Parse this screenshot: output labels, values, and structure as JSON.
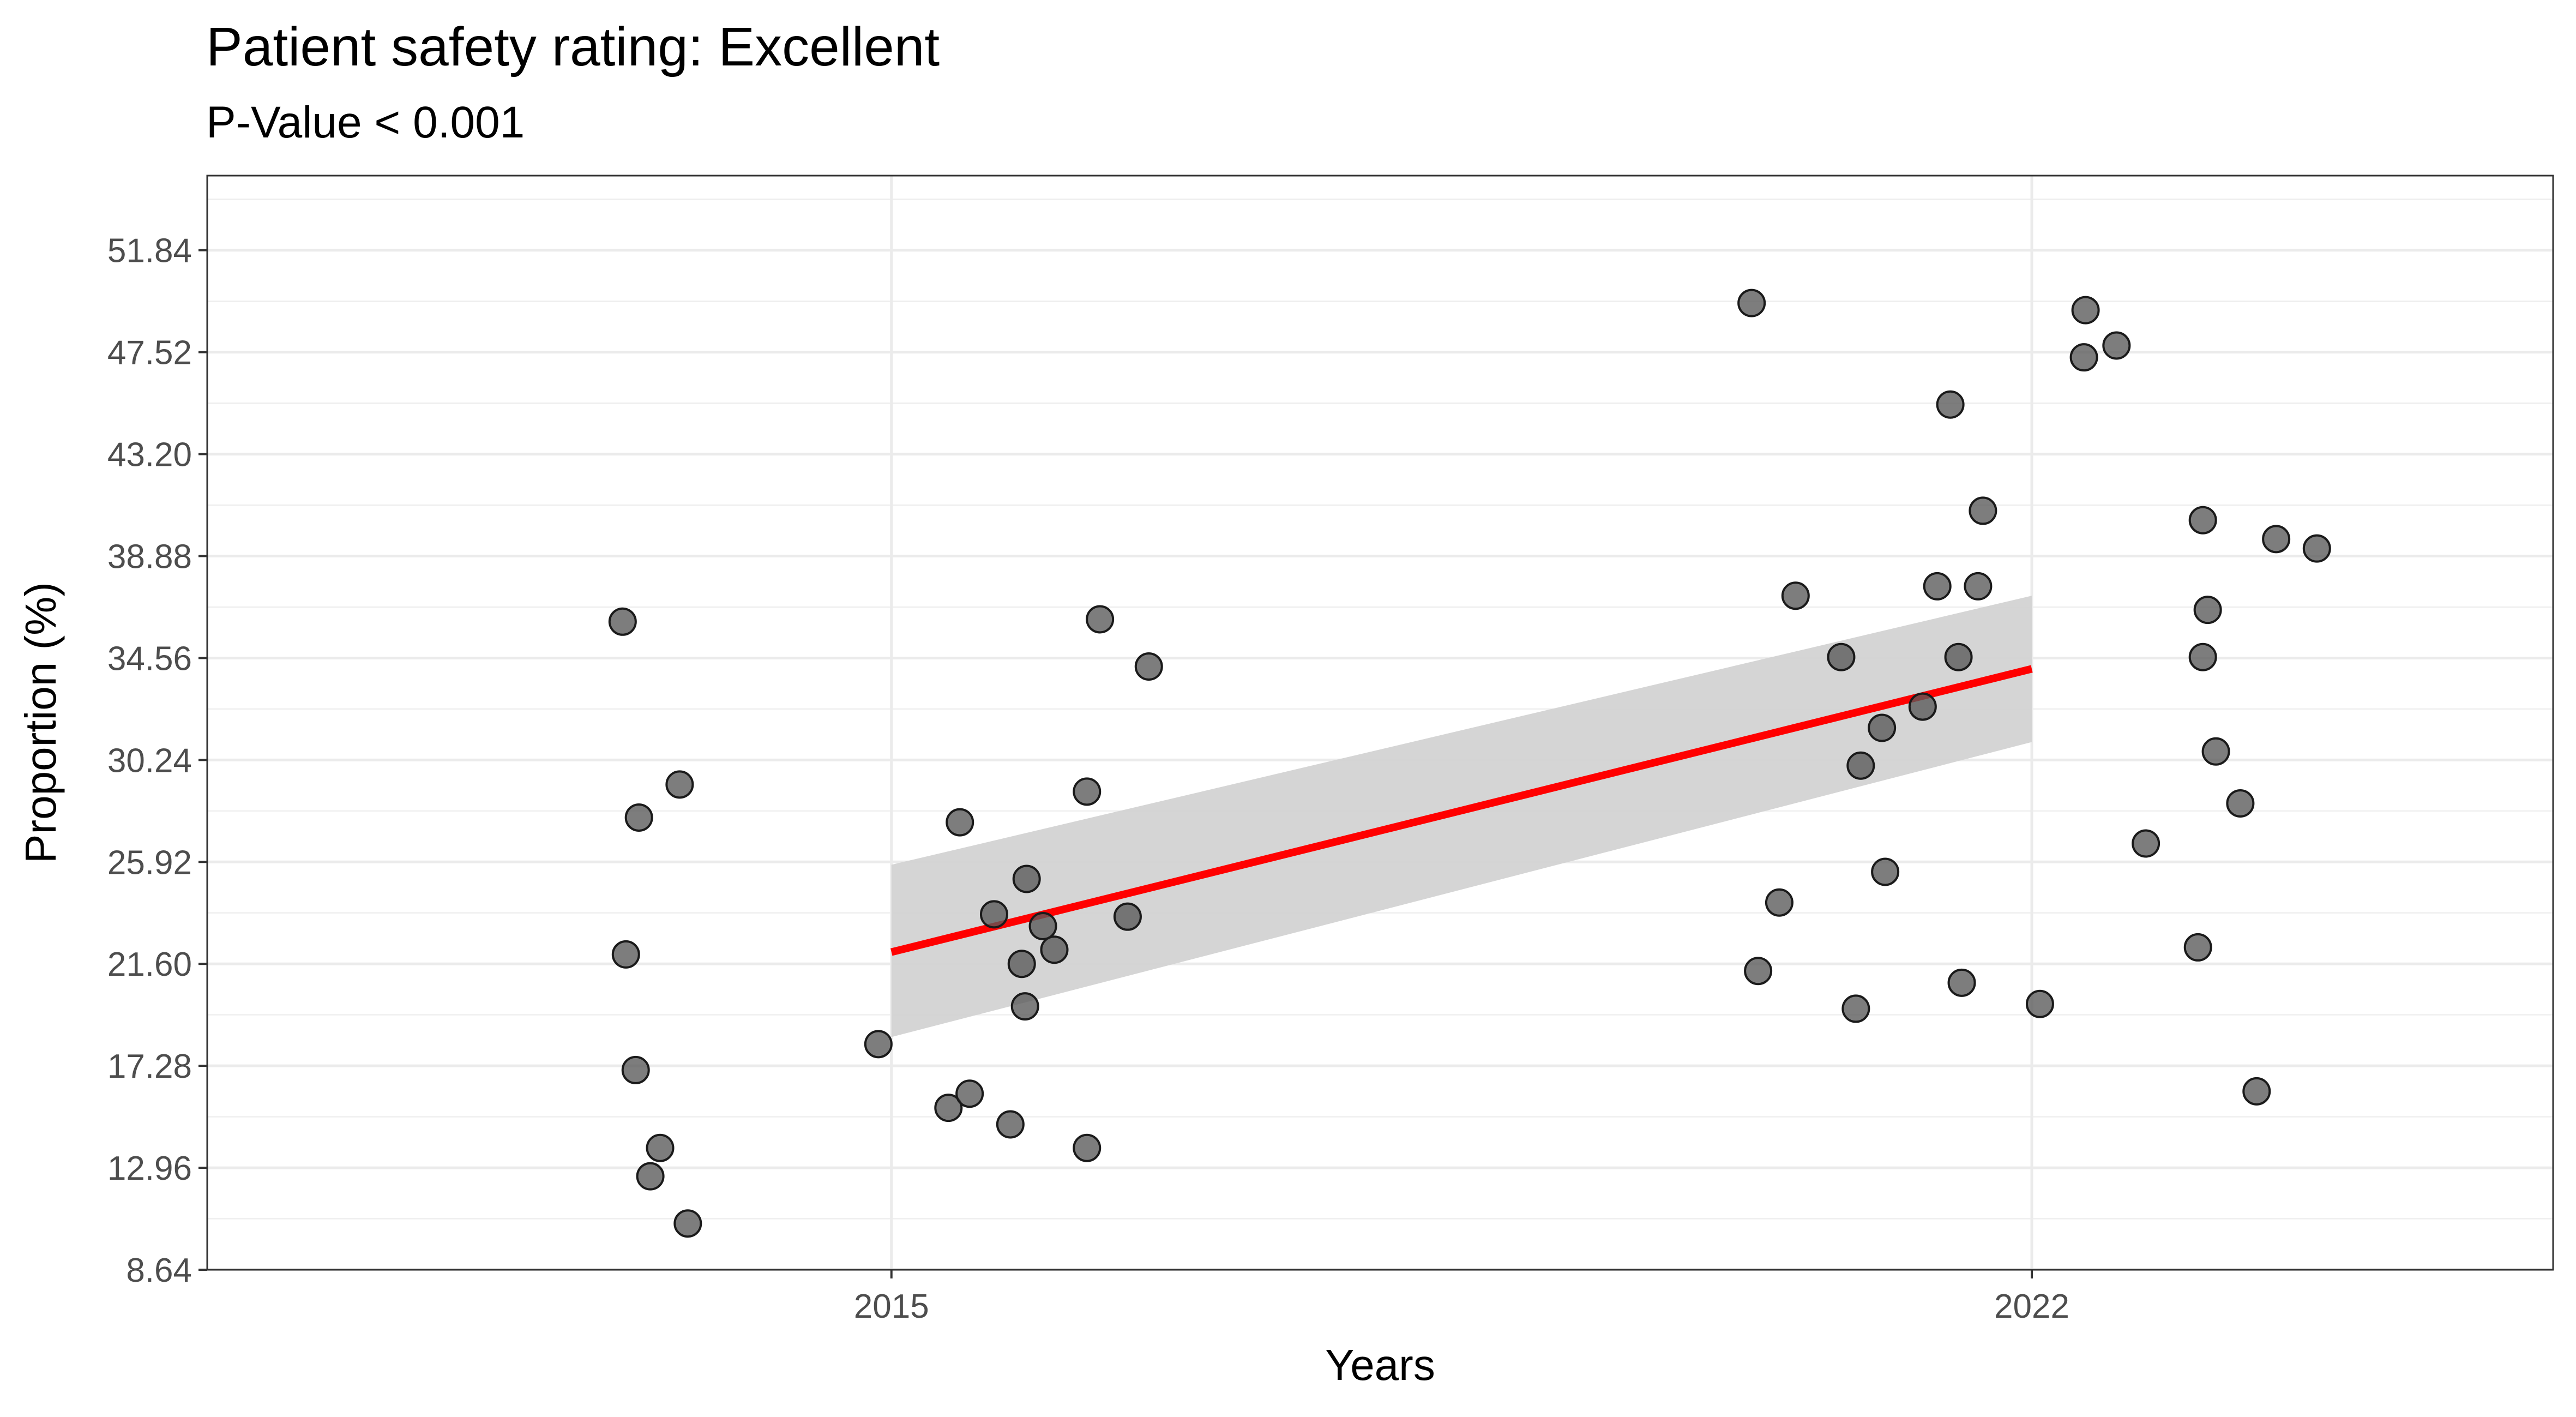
{
  "chart_data": {
    "type": "scatter",
    "title": "Patient safety rating: Excellent",
    "subtitle": "P-Value < 0.001",
    "xlabel": "Years",
    "ylabel": "Proportion (%)",
    "x_ticks": [
      2015,
      2022
    ],
    "y_ticks": [
      "8.64",
      "12.96",
      "17.28",
      "21.60",
      "25.92",
      "30.24",
      "34.56",
      "38.88",
      "43.20",
      "47.52",
      "51.84"
    ],
    "xlim": [
      2010.8,
      2025.2
    ],
    "ylim": [
      8.64,
      55.0
    ],
    "grid": true,
    "colors": {
      "points": "#595959",
      "fit_line": "#ff0000",
      "confidence_band": "#d3d3d3"
    },
    "points": [
      {
        "x": 2013.35,
        "y": 36.1
      },
      {
        "x": 2013.45,
        "y": 27.8
      },
      {
        "x": 2013.37,
        "y": 22.0
      },
      {
        "x": 2013.7,
        "y": 29.2
      },
      {
        "x": 2013.43,
        "y": 17.1
      },
      {
        "x": 2013.58,
        "y": 13.8
      },
      {
        "x": 2013.52,
        "y": 12.6
      },
      {
        "x": 2013.75,
        "y": 10.6
      },
      {
        "x": 2014.92,
        "y": 18.2
      },
      {
        "x": 2015.35,
        "y": 15.5
      },
      {
        "x": 2015.48,
        "y": 16.1
      },
      {
        "x": 2015.42,
        "y": 27.6
      },
      {
        "x": 2015.63,
        "y": 23.7
      },
      {
        "x": 2015.83,
        "y": 25.2
      },
      {
        "x": 2015.93,
        "y": 23.2
      },
      {
        "x": 2016.0,
        "y": 22.2
      },
      {
        "x": 2015.8,
        "y": 21.6
      },
      {
        "x": 2015.82,
        "y": 19.8
      },
      {
        "x": 2015.73,
        "y": 14.8
      },
      {
        "x": 2016.2,
        "y": 13.8
      },
      {
        "x": 2016.28,
        "y": 36.2
      },
      {
        "x": 2016.2,
        "y": 28.9
      },
      {
        "x": 2016.45,
        "y": 23.6
      },
      {
        "x": 2016.58,
        "y": 34.2
      },
      {
        "x": 2020.28,
        "y": 49.6
      },
      {
        "x": 2020.32,
        "y": 21.3
      },
      {
        "x": 2020.45,
        "y": 24.2
      },
      {
        "x": 2020.55,
        "y": 37.2
      },
      {
        "x": 2020.83,
        "y": 34.6
      },
      {
        "x": 2020.92,
        "y": 19.7
      },
      {
        "x": 2020.95,
        "y": 30.0
      },
      {
        "x": 2021.08,
        "y": 31.6
      },
      {
        "x": 2021.1,
        "y": 25.5
      },
      {
        "x": 2021.33,
        "y": 32.5
      },
      {
        "x": 2021.42,
        "y": 37.6
      },
      {
        "x": 2021.5,
        "y": 45.3
      },
      {
        "x": 2021.55,
        "y": 34.6
      },
      {
        "x": 2021.57,
        "y": 20.8
      },
      {
        "x": 2021.67,
        "y": 37.6
      },
      {
        "x": 2021.7,
        "y": 40.8
      },
      {
        "x": 2022.05,
        "y": 19.9
      },
      {
        "x": 2022.33,
        "y": 49.3
      },
      {
        "x": 2022.32,
        "y": 47.3
      },
      {
        "x": 2022.52,
        "y": 47.8
      },
      {
        "x": 2022.7,
        "y": 26.7
      },
      {
        "x": 2023.02,
        "y": 22.3
      },
      {
        "x": 2023.05,
        "y": 40.4
      },
      {
        "x": 2023.05,
        "y": 34.6
      },
      {
        "x": 2023.08,
        "y": 36.6
      },
      {
        "x": 2023.13,
        "y": 30.6
      },
      {
        "x": 2023.28,
        "y": 28.4
      },
      {
        "x": 2023.38,
        "y": 16.2
      },
      {
        "x": 2023.5,
        "y": 39.6
      },
      {
        "x": 2023.75,
        "y": 39.2
      }
    ],
    "fit_line": {
      "x": [
        2015,
        2022
      ],
      "y": [
        22.1,
        34.1
      ]
    },
    "confidence_band": {
      "x": [
        2015,
        2022
      ],
      "lower": [
        18.5,
        31.0
      ],
      "upper": [
        25.8,
        37.2
      ]
    }
  }
}
